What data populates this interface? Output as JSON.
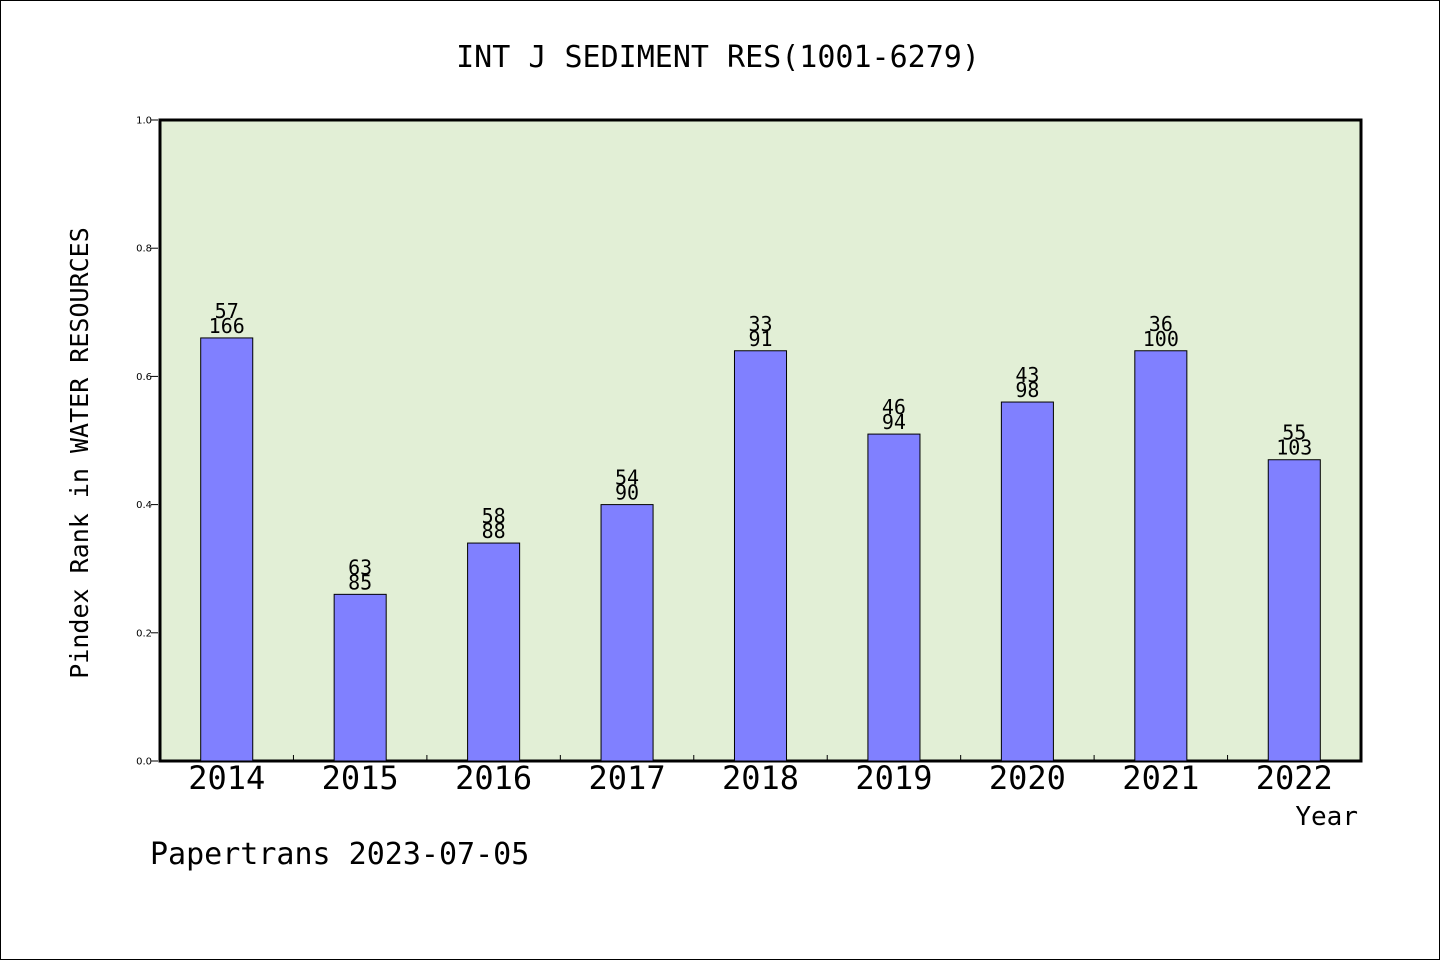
{
  "chart_data": {
    "type": "bar",
    "title": "INT J SEDIMENT RES(1001-6279)",
    "xlabel": "Year",
    "ylabel": "Pindex Rank in WATER RESOURCES",
    "ylim": [
      0,
      1.0
    ],
    "yticks": [
      "0.0",
      "0.2",
      "0.4",
      "0.6",
      "0.8",
      "1.0"
    ],
    "categories": [
      "2014",
      "2015",
      "2016",
      "2017",
      "2018",
      "2019",
      "2020",
      "2021",
      "2022"
    ],
    "values": [
      0.66,
      0.26,
      0.34,
      0.4,
      0.64,
      0.51,
      0.56,
      0.64,
      0.47
    ],
    "labels_top": [
      "57",
      "63",
      "58",
      "54",
      "33",
      "46",
      "43",
      "36",
      "55"
    ],
    "labels_bottom": [
      "166",
      "85",
      "88",
      "90",
      "91",
      "94",
      "98",
      "100",
      "103"
    ],
    "grid": false,
    "legend": "none",
    "colors": {
      "bar": "#8080ff",
      "plot_background": "#e2efd6",
      "axis": "#000000"
    }
  },
  "footer": {
    "credit": "Papertrans 2023-07-05"
  }
}
